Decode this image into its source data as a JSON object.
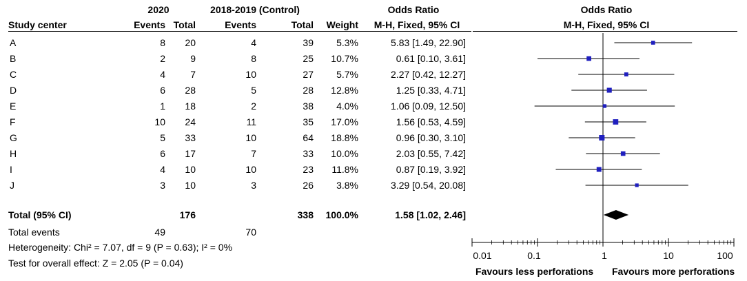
{
  "chart_data": {
    "type": "forest",
    "headers": {
      "group1": "2020",
      "group2": "2018-2019 (Control)",
      "or_top": "Odds Ratio",
      "or_sub": "M-H, Fixed, 95% CI",
      "plot_top": "Odds Ratio",
      "plot_sub": "M-H, Fixed, 95% CI",
      "study": "Study center",
      "events1": "Events",
      "total1": "Total",
      "events2": "Events",
      "total2": "Total",
      "weight": "Weight"
    },
    "studies": [
      {
        "name": "A",
        "e1": "8",
        "t1": "20",
        "e2": "4",
        "t2": "39",
        "weight": "5.3%",
        "ci_text": "5.83 [1.49, 22.90]",
        "or": 5.83,
        "lo": 1.49,
        "hi": 22.9
      },
      {
        "name": "B",
        "e1": "2",
        "t1": "9",
        "e2": "8",
        "t2": "25",
        "weight": "10.7%",
        "ci_text": "0.61 [0.10, 3.61]",
        "or": 0.61,
        "lo": 0.1,
        "hi": 3.61
      },
      {
        "name": "C",
        "e1": "4",
        "t1": "7",
        "e2": "10",
        "t2": "27",
        "weight": "5.7%",
        "ci_text": "2.27 [0.42, 12.27]",
        "or": 2.27,
        "lo": 0.42,
        "hi": 12.27
      },
      {
        "name": "D",
        "e1": "6",
        "t1": "28",
        "e2": "5",
        "t2": "28",
        "weight": "12.8%",
        "ci_text": "1.25 [0.33, 4.71]",
        "or": 1.25,
        "lo": 0.33,
        "hi": 4.71
      },
      {
        "name": "E",
        "e1": "1",
        "t1": "18",
        "e2": "2",
        "t2": "38",
        "weight": "4.0%",
        "ci_text": "1.06 [0.09, 12.50]",
        "or": 1.06,
        "lo": 0.09,
        "hi": 12.5
      },
      {
        "name": "F",
        "e1": "10",
        "t1": "24",
        "e2": "11",
        "t2": "35",
        "weight": "17.0%",
        "ci_text": "1.56 [0.53, 4.59]",
        "or": 1.56,
        "lo": 0.53,
        "hi": 4.59
      },
      {
        "name": "G",
        "e1": "5",
        "t1": "33",
        "e2": "10",
        "t2": "64",
        "weight": "18.8%",
        "ci_text": "0.96 [0.30, 3.10]",
        "or": 0.96,
        "lo": 0.3,
        "hi": 3.1
      },
      {
        "name": "H",
        "e1": "6",
        "t1": "17",
        "e2": "7",
        "t2": "33",
        "weight": "10.0%",
        "ci_text": "2.03 [0.55, 7.42]",
        "or": 2.03,
        "lo": 0.55,
        "hi": 7.42
      },
      {
        "name": "I",
        "e1": "4",
        "t1": "10",
        "e2": "10",
        "t2": "23",
        "weight": "11.8%",
        "ci_text": "0.87 [0.19, 3.92]",
        "or": 0.87,
        "lo": 0.19,
        "hi": 3.92
      },
      {
        "name": "J",
        "e1": "3",
        "t1": "10",
        "e2": "3",
        "t2": "26",
        "weight": "3.8%",
        "ci_text": "3.29 [0.54, 20.08]",
        "or": 3.29,
        "lo": 0.54,
        "hi": 20.08
      }
    ],
    "total": {
      "label": "Total (95% CI)",
      "t1": "176",
      "t2": "338",
      "weight": "100.0%",
      "ci_text": "1.58 [1.02, 2.46]",
      "or": 1.58,
      "lo": 1.02,
      "hi": 2.46
    },
    "total_events": {
      "label": "Total events",
      "e1": "49",
      "e2": "70"
    },
    "heterogeneity": "Heterogeneity: Chi² = 7.07, df = 9 (P = 0.63); I² = 0%",
    "overall_effect": "Test for overall effect: Z = 2.05 (P = 0.04)",
    "axis": {
      "scale": "log",
      "range": [
        0.01,
        100
      ],
      "ticks": [
        0.01,
        0.1,
        1,
        10,
        100
      ],
      "tick_labels": [
        "0.01",
        "0.1",
        "1",
        "10",
        "100"
      ],
      "null_value": 1,
      "favours_left": "Favours less perforations",
      "favours_right": "Favours more perforations"
    },
    "colors": {
      "marker": "#1f1fbf",
      "diamond": "#000000",
      "line": "#000000"
    }
  }
}
